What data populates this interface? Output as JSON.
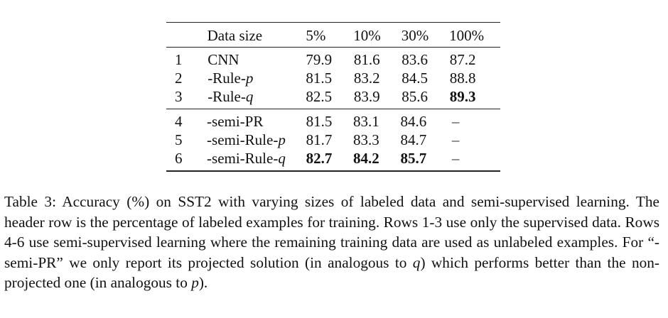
{
  "table": {
    "header": [
      "",
      "Data size",
      "5%",
      "10%",
      "30%",
      "100%"
    ],
    "group1": [
      {
        "idx": "1",
        "name": "CNN",
        "name_suffix": "",
        "v": [
          "79.9",
          "81.6",
          "83.6",
          "87.2"
        ],
        "bold": [
          false,
          false,
          false,
          false
        ]
      },
      {
        "idx": "2",
        "name": "-Rule-",
        "name_suffix": "p",
        "v": [
          "81.5",
          "83.2",
          "84.5",
          "88.8"
        ],
        "bold": [
          false,
          false,
          false,
          false
        ]
      },
      {
        "idx": "3",
        "name": "-Rule-",
        "name_suffix": "q",
        "v": [
          "82.5",
          "83.9",
          "85.6",
          "89.3"
        ],
        "bold": [
          false,
          false,
          false,
          true
        ]
      }
    ],
    "group2": [
      {
        "idx": "4",
        "name": "-semi-PR",
        "name_suffix": "",
        "v": [
          "81.5",
          "83.1",
          "84.6",
          "–"
        ],
        "bold": [
          false,
          false,
          false,
          false
        ]
      },
      {
        "idx": "5",
        "name": "-semi-Rule-",
        "name_suffix": "p",
        "v": [
          "81.7",
          "83.3",
          "84.7",
          "–"
        ],
        "bold": [
          false,
          false,
          false,
          false
        ]
      },
      {
        "idx": "6",
        "name": "-semi-Rule-",
        "name_suffix": "q",
        "v": [
          "82.7",
          "84.2",
          "85.7",
          "–"
        ],
        "bold": [
          true,
          true,
          true,
          false
        ]
      }
    ]
  },
  "caption": {
    "label": "Table 3:",
    "text_a": " Accuracy (%) on SST2 with varying sizes of labeled data and semi-supervised learning. The header row is the percentage of labeled examples for training. Rows 1-3 use only the supervised data. Rows 4-6 use semi-supervised learning where the remaining training data are used as unlabeled examples. For “-semi-PR” we only report its projected solution (in analogous to ",
    "var_q": "q",
    "text_b": ") which performs better than the non-projected one (in analogous to ",
    "var_p": "p",
    "text_c": ")."
  }
}
